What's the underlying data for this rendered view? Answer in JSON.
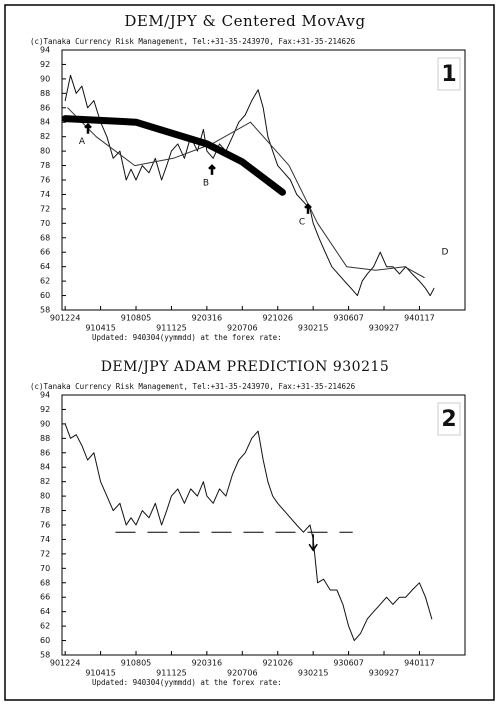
{
  "chart_data": [
    {
      "type": "line",
      "title": "DEM/JPY & Centered MovAvg",
      "subtitle": "(c)Tanaka Currency Risk Management, Tel:+31-35-243970, Fax:+31-35-214626",
      "label": "1",
      "footer": "Updated: 940304(yymmdd) at the forex rate:",
      "xlim": [
        "1990-12-14",
        "1994-06-10"
      ],
      "ylim": [
        58,
        94
      ],
      "yticks": [
        58,
        60,
        62,
        64,
        66,
        68,
        70,
        72,
        74,
        76,
        78,
        80,
        82,
        84,
        86,
        88,
        90,
        92,
        94
      ],
      "xticks": [
        {
          "value": "1990-12-24",
          "label": "901224"
        },
        {
          "value": "1991-04-15",
          "label": "910415"
        },
        {
          "value": "1991-08-05",
          "label": "910805"
        },
        {
          "value": "1991-11-25",
          "label": "911125"
        },
        {
          "value": "1992-03-16",
          "label": "920316"
        },
        {
          "value": "1992-07-06",
          "label": "920706"
        },
        {
          "value": "1992-10-26",
          "label": "921026"
        },
        {
          "value": "1993-02-15",
          "label": "930215"
        },
        {
          "value": "1993-06-07",
          "label": "930607"
        },
        {
          "value": "1993-09-27",
          "label": "930927"
        },
        {
          "value": "1994-01-17",
          "label": "940117"
        }
      ],
      "annotations": [
        {
          "text": "A",
          "value": 81.3
        },
        {
          "text": "B",
          "value": 75.6
        },
        {
          "text": "C",
          "value": 70.2
        },
        {
          "text": "D",
          "value": 66
        }
      ],
      "series": [
        {
          "color": "#111",
          "line_width": 1,
          "x": [
            "1990-12-24",
            "1991-01-10",
            "1991-01-28",
            "1991-02-15",
            "1991-03-05",
            "1991-03-25",
            "1991-04-15",
            "1991-05-05",
            "1991-05-25",
            "1991-06-15",
            "1991-07-05",
            "1991-07-20",
            "1991-08-05",
            "1991-08-25",
            "1991-09-15",
            "1991-10-05",
            "1991-10-25",
            "1991-11-10",
            "1991-11-25",
            "1991-12-15",
            "1992-01-05",
            "1992-01-25",
            "1992-02-15",
            "1992-03-05",
            "1992-03-16",
            "1992-04-05",
            "1992-04-25",
            "1992-05-15",
            "1992-06-05",
            "1992-06-25",
            "1992-07-15",
            "1992-08-05",
            "1992-08-25",
            "1992-09-10",
            "1992-09-25",
            "1992-10-10",
            "1992-10-26",
            "1992-11-15",
            "1992-12-05",
            "1992-12-25",
            "1993-01-15",
            "1993-02-05",
            "1993-02-15",
            "1993-03-05",
            "1993-03-25",
            "1993-04-15",
            "1993-05-05",
            "1993-05-25",
            "1993-06-15",
            "1993-07-05",
            "1993-07-20",
            "1993-08-05",
            "1993-08-25",
            "1993-09-15",
            "1993-10-05",
            "1993-10-25",
            "1993-11-15",
            "1993-12-05",
            "1993-12-25",
            "1994-01-17",
            "1994-02-05",
            "1994-02-20",
            "1994-03-04"
          ],
          "values": [
            87,
            90.5,
            88,
            89,
            86,
            87,
            84,
            82,
            79,
            80,
            76,
            77.5,
            76,
            78,
            77,
            79,
            76,
            78,
            80,
            81,
            79,
            82,
            80,
            83,
            80,
            79,
            81,
            80,
            82,
            84,
            85,
            87,
            88.5,
            86,
            82,
            80,
            78,
            77,
            76,
            74,
            73,
            72,
            70,
            68,
            66,
            64,
            63,
            62,
            61,
            60,
            62,
            63,
            64,
            66,
            64,
            64,
            63,
            64,
            63,
            62,
            61,
            60,
            61
          ]
        },
        {
          "color": "#333",
          "line_width": 1,
          "x": [
            "1991-01-01",
            "1991-04-01",
            "1991-08-01",
            "1991-12-01",
            "1992-04-01",
            "1992-08-01",
            "1992-12-01",
            "1993-03-01",
            "1993-06-01",
            "1993-09-01",
            "1993-12-01",
            "1994-02-01"
          ],
          "values": [
            86,
            82,
            78,
            79,
            81,
            84,
            78,
            70,
            64,
            63.5,
            64,
            62.5
          ]
        },
        {
          "color": "#000",
          "line_width": 7,
          "x": [
            "1990-12-24",
            "1991-08-05",
            "1992-03-16",
            "1992-07-06",
            "1992-11-10"
          ],
          "values": [
            84.5,
            84,
            81,
            78.5,
            74.3
          ]
        }
      ]
    },
    {
      "type": "line",
      "title": "DEM/JPY ADAM PREDICTION 930215",
      "subtitle": "(c)Tanaka Currency Risk Management, Tel:+31-35-243970, Fax:+31-35-214626",
      "label": "2",
      "footer": "Updated: 940304(yymmdd) at the forex rate:",
      "xlim": [
        "1990-12-14",
        "1994-06-10"
      ],
      "ylim": [
        58,
        94
      ],
      "yticks": [
        58,
        60,
        62,
        64,
        66,
        68,
        70,
        72,
        74,
        76,
        78,
        80,
        82,
        84,
        86,
        88,
        90,
        92,
        94
      ],
      "xticks": [
        {
          "value": "1990-12-24",
          "label": "901224"
        },
        {
          "value": "1991-04-15",
          "label": "910415"
        },
        {
          "value": "1991-08-05",
          "label": "910805"
        },
        {
          "value": "1991-11-25",
          "label": "911125"
        },
        {
          "value": "1992-03-16",
          "label": "920316"
        },
        {
          "value": "1992-07-06",
          "label": "920706"
        },
        {
          "value": "1992-10-26",
          "label": "921026"
        },
        {
          "value": "1993-02-15",
          "label": "930215"
        },
        {
          "value": "1993-06-07",
          "label": "930607"
        },
        {
          "value": "1993-09-27",
          "label": "930927"
        },
        {
          "value": "1994-01-17",
          "label": "940117"
        }
      ],
      "reference_line": {
        "value": 75,
        "x": [
          "1991-06-01",
          "1993-06-20"
        ]
      },
      "series": [
        {
          "color": "#111",
          "line_width": 1,
          "x": [
            "1990-12-24",
            "1991-01-10",
            "1991-01-28",
            "1991-02-15",
            "1991-03-05",
            "1991-03-25",
            "1991-04-15",
            "1991-05-05",
            "1991-05-25",
            "1991-06-15",
            "1991-07-05",
            "1991-07-20",
            "1991-08-05",
            "1991-08-25",
            "1991-09-15",
            "1991-10-05",
            "1991-10-25",
            "1991-11-10",
            "1991-11-25",
            "1991-12-15",
            "1992-01-05",
            "1992-01-25",
            "1992-02-15",
            "1992-03-05",
            "1992-03-16",
            "1992-04-05",
            "1992-04-25",
            "1992-05-15",
            "1992-06-05",
            "1992-06-25",
            "1992-07-15",
            "1992-08-05",
            "1992-08-25",
            "1992-09-10",
            "1992-09-25",
            "1992-10-10",
            "1992-10-26",
            "1992-11-15",
            "1992-12-05",
            "1992-12-25",
            "1993-01-15",
            "1993-02-05",
            "1993-02-15",
            "1993-03-01",
            "1993-03-20",
            "1993-04-10",
            "1993-05-01",
            "1993-05-20",
            "1993-06-07",
            "1993-06-25",
            "1993-07-15",
            "1993-08-05",
            "1993-08-25",
            "1993-09-15",
            "1993-10-05",
            "1993-10-25",
            "1993-11-15",
            "1993-12-05",
            "1993-12-25",
            "1994-01-17",
            "1994-02-05",
            "1994-02-25"
          ],
          "values": [
            90,
            88,
            88.5,
            87,
            85,
            86,
            82,
            80,
            78,
            79,
            76,
            77,
            76,
            78,
            77,
            79,
            76,
            78,
            80,
            81,
            79,
            81,
            80,
            82,
            80,
            79,
            81,
            80,
            83,
            85,
            86,
            88,
            89,
            85,
            82,
            80,
            79,
            78,
            77,
            76,
            75,
            76,
            74,
            68,
            68.5,
            67,
            67,
            65,
            62,
            60,
            61,
            63,
            64,
            65,
            66,
            65,
            66,
            66,
            67,
            68,
            66,
            63
          ]
        }
      ]
    }
  ]
}
